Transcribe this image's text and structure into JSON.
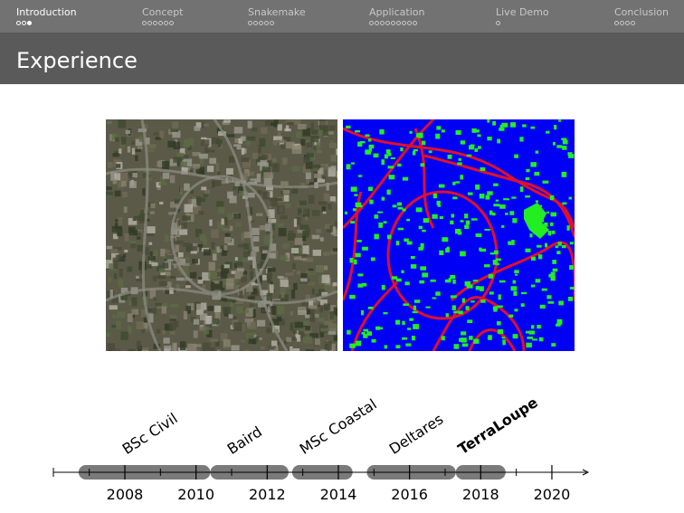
{
  "nav": {
    "sections": [
      {
        "label": "Introduction",
        "slides": 3,
        "current": 3,
        "active": true
      },
      {
        "label": "Concept",
        "slides": 6
      },
      {
        "label": "Snakemake",
        "slides": 5
      },
      {
        "label": "Application",
        "slides": 9
      },
      {
        "label": "Live Demo",
        "slides": 1
      },
      {
        "label": "Conclusion",
        "slides": 4
      }
    ]
  },
  "slide": {
    "title": "Experience"
  },
  "figure": {
    "left": "aerial-image",
    "right": "segmentation-mask",
    "colors": {
      "background": "#0000ff",
      "roads": "#e0102a",
      "buildings": "#22ee22"
    }
  },
  "timeline": {
    "ticks": [
      "2008",
      "2010",
      "2012",
      "2014",
      "2016",
      "2018",
      "2020"
    ],
    "periods": [
      {
        "label": "BSc Civil",
        "start": 2006.7,
        "end": 2010.4,
        "bold": false
      },
      {
        "label": "Baird",
        "start": 2010.4,
        "end": 2012.6,
        "bold": false
      },
      {
        "label": "MSc Coastal",
        "start": 2012.7,
        "end": 2014.4,
        "bold": false
      },
      {
        "label": "Deltares",
        "start": 2014.8,
        "end": 2017.3,
        "bold": false
      },
      {
        "label": "TerraLoupe",
        "start": 2017.3,
        "end": 2018.7,
        "bold": true
      }
    ]
  }
}
